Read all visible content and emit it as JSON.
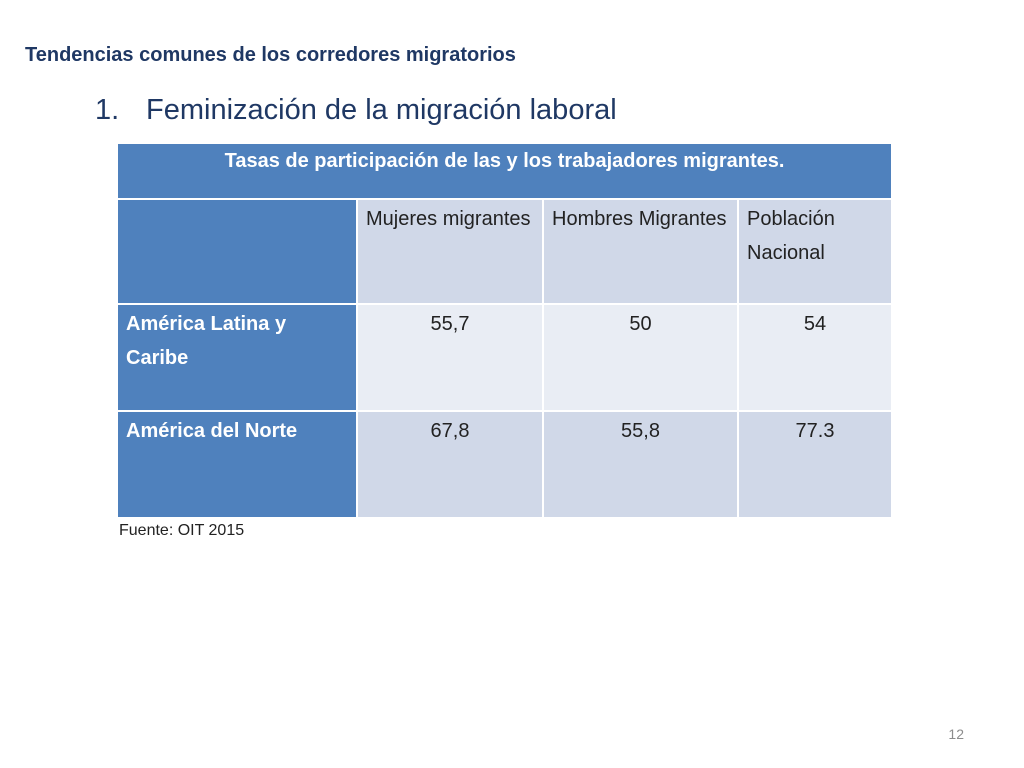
{
  "slide": {
    "subtitle": "Tendencias comunes de los corredores migratorios",
    "heading_number": "1.",
    "heading_text": "Feminización de la migración laboral",
    "source": "Fuente: OIT 2015",
    "page_number": "12"
  },
  "table": {
    "title": "Tasas de participación de las y los trabajadores migrantes.",
    "columns": [
      "Mujeres migrantes",
      "Hombres Migrantes",
      "Población Nacional"
    ],
    "rows": [
      {
        "label": "América Latina y Caribe",
        "values": [
          "55,7",
          "50",
          "54"
        ]
      },
      {
        "label": "América del Norte",
        "values": [
          "67,8",
          "55,8",
          "77.3"
        ]
      }
    ]
  },
  "colors": {
    "header_blue": "#4f81bd",
    "light_cell": "#e9edf4",
    "mid_cell": "#d0d8e8",
    "title_text": "#1f3864"
  }
}
